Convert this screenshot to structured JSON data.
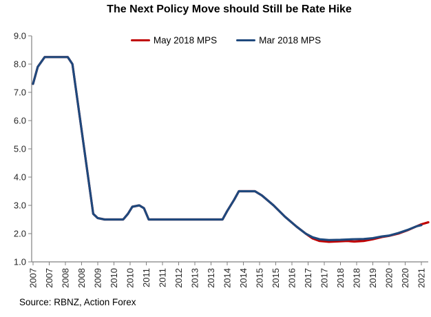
{
  "title": "The Next Policy Move should Still be Rate Hike",
  "source": "Source: RBNZ, Action Forex",
  "legend": [
    {
      "label": "May 2018 MPS",
      "color": "#C00000"
    },
    {
      "label": "Mar 2018 MPS",
      "color": "#1F497D"
    }
  ],
  "colors": {
    "may_series": "#C00000",
    "mar_series": "#1F497D",
    "axis": "#808080",
    "tick_text": "#262626"
  },
  "chart_data": {
    "type": "line",
    "title": "The Next Policy Move should Still be Rate Hike",
    "xlabel": "",
    "ylabel": "",
    "ylim": [
      1.0,
      9.0
    ],
    "grid": false,
    "legend_position": "top",
    "y_ticks": [
      "9.0",
      "8.0",
      "7.0",
      "6.0",
      "5.0",
      "4.0",
      "3.0",
      "2.0",
      "1.0"
    ],
    "x_tick_labels": [
      "2007",
      "2007",
      "2008",
      "2008",
      "2009",
      "2010",
      "2010",
      "2011",
      "2011",
      "2012",
      "2013",
      "2013",
      "2014",
      "2014",
      "2015",
      "2015",
      "2016",
      "2017",
      "2017",
      "2018",
      "2018",
      "2019",
      "2020",
      "2020",
      "2021"
    ],
    "x_range_years": [
      2007.25,
      2021.25
    ],
    "series": [
      {
        "name": "May 2018 MPS",
        "color": "#C00000",
        "points": [
          [
            2007.25,
            7.3
          ],
          [
            2007.42,
            7.9
          ],
          [
            2007.67,
            8.25
          ],
          [
            2008.5,
            8.25
          ],
          [
            2008.67,
            8.0
          ],
          [
            2009.42,
            2.7
          ],
          [
            2009.58,
            2.55
          ],
          [
            2009.83,
            2.5
          ],
          [
            2010.5,
            2.5
          ],
          [
            2010.67,
            2.7
          ],
          [
            2010.83,
            2.95
          ],
          [
            2011.08,
            3.0
          ],
          [
            2011.25,
            2.9
          ],
          [
            2011.42,
            2.5
          ],
          [
            2014.08,
            2.5
          ],
          [
            2014.25,
            2.8
          ],
          [
            2014.5,
            3.2
          ],
          [
            2014.67,
            3.5
          ],
          [
            2015.25,
            3.5
          ],
          [
            2015.5,
            3.35
          ],
          [
            2015.92,
            3.0
          ],
          [
            2016.33,
            2.6
          ],
          [
            2016.75,
            2.25
          ],
          [
            2017.08,
            2.0
          ],
          [
            2017.33,
            1.83
          ],
          [
            2017.58,
            1.74
          ],
          [
            2017.92,
            1.71
          ],
          [
            2018.33,
            1.73
          ],
          [
            2018.58,
            1.74
          ],
          [
            2018.83,
            1.72
          ],
          [
            2019.17,
            1.74
          ],
          [
            2019.5,
            1.8
          ],
          [
            2019.83,
            1.88
          ],
          [
            2020.08,
            1.92
          ],
          [
            2020.42,
            2.0
          ],
          [
            2020.75,
            2.12
          ],
          [
            2021.08,
            2.26
          ],
          [
            2021.25,
            2.33
          ],
          [
            2021.5,
            2.4
          ]
        ]
      },
      {
        "name": "Mar 2018 MPS",
        "color": "#1F497D",
        "points": [
          [
            2007.25,
            7.3
          ],
          [
            2007.42,
            7.9
          ],
          [
            2007.67,
            8.25
          ],
          [
            2008.5,
            8.25
          ],
          [
            2008.67,
            8.0
          ],
          [
            2009.42,
            2.7
          ],
          [
            2009.58,
            2.55
          ],
          [
            2009.83,
            2.5
          ],
          [
            2010.5,
            2.5
          ],
          [
            2010.67,
            2.7
          ],
          [
            2010.83,
            2.95
          ],
          [
            2011.08,
            3.0
          ],
          [
            2011.25,
            2.9
          ],
          [
            2011.42,
            2.5
          ],
          [
            2014.08,
            2.5
          ],
          [
            2014.25,
            2.8
          ],
          [
            2014.5,
            3.2
          ],
          [
            2014.67,
            3.5
          ],
          [
            2015.25,
            3.5
          ],
          [
            2015.5,
            3.35
          ],
          [
            2015.92,
            3.0
          ],
          [
            2016.33,
            2.6
          ],
          [
            2016.75,
            2.25
          ],
          [
            2017.08,
            2.0
          ],
          [
            2017.33,
            1.87
          ],
          [
            2017.58,
            1.8
          ],
          [
            2017.92,
            1.77
          ],
          [
            2018.33,
            1.78
          ],
          [
            2018.75,
            1.8
          ],
          [
            2019.17,
            1.81
          ],
          [
            2019.5,
            1.84
          ],
          [
            2019.83,
            1.9
          ],
          [
            2020.08,
            1.93
          ],
          [
            2020.42,
            2.02
          ],
          [
            2020.75,
            2.13
          ],
          [
            2021.08,
            2.26
          ],
          [
            2021.25,
            2.3
          ]
        ]
      }
    ]
  }
}
